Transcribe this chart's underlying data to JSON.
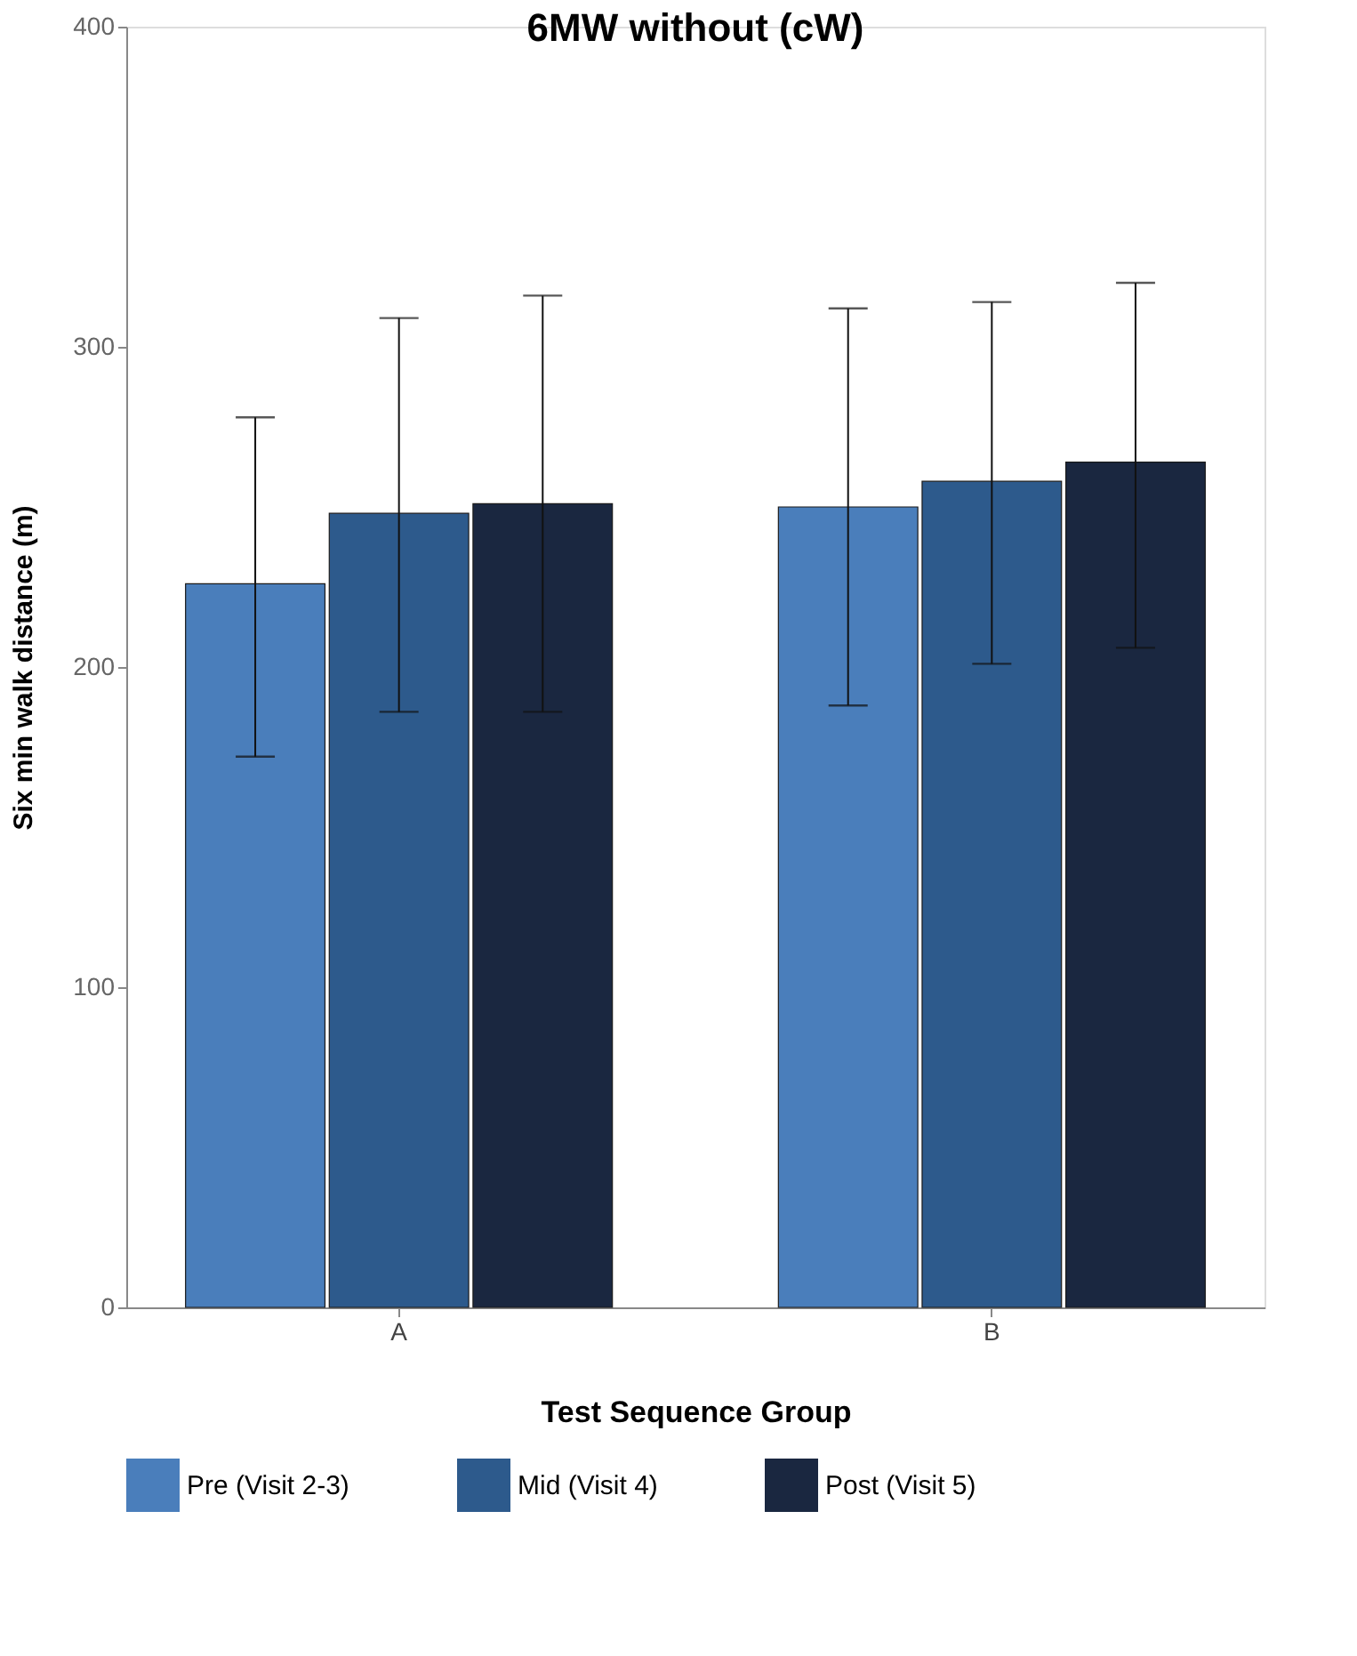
{
  "chart_data": {
    "type": "bar",
    "title": "6MW without (cW)",
    "xlabel": "Test Sequence Group",
    "ylabel": "Six min walk distance (m)",
    "categories": [
      "A",
      "B"
    ],
    "series": [
      {
        "name": "Pre (Visit 2-3)",
        "color": "#4a7ebb",
        "values": [
          226,
          250
        ],
        "errors": [
          [
            172,
            278
          ],
          [
            188,
            312
          ]
        ]
      },
      {
        "name": "Mid (Visit 4)",
        "color": "#2d5a8c",
        "values": [
          248,
          258
        ],
        "errors": [
          [
            186,
            309
          ],
          [
            201,
            314
          ]
        ]
      },
      {
        "name": "Post (Visit 5)",
        "color": "#1a2740",
        "values": [
          251,
          264
        ],
        "errors": [
          [
            186,
            316
          ],
          [
            206,
            320
          ]
        ]
      }
    ],
    "ylim": [
      0,
      400
    ],
    "yticks": [
      0,
      100,
      200,
      300,
      400
    ],
    "grid": false,
    "legend": "bottom"
  }
}
